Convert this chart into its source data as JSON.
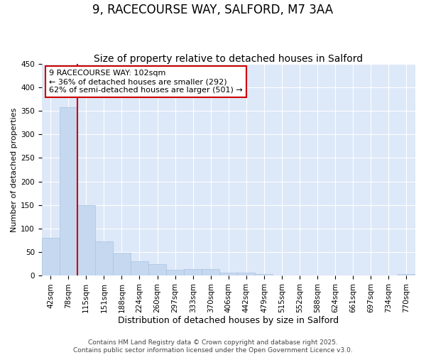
{
  "title": "9, RACECOURSE WAY, SALFORD, M7 3AA",
  "subtitle": "Size of property relative to detached houses in Salford",
  "xlabel": "Distribution of detached houses by size in Salford",
  "ylabel": "Number of detached properties",
  "bar_labels": [
    "42sqm",
    "78sqm",
    "115sqm",
    "151sqm",
    "188sqm",
    "224sqm",
    "260sqm",
    "297sqm",
    "333sqm",
    "370sqm",
    "406sqm",
    "442sqm",
    "479sqm",
    "515sqm",
    "552sqm",
    "588sqm",
    "624sqm",
    "661sqm",
    "697sqm",
    "734sqm",
    "770sqm"
  ],
  "bar_values": [
    80,
    358,
    150,
    73,
    49,
    31,
    25,
    13,
    15,
    15,
    6,
    6,
    3,
    1,
    1,
    1,
    1,
    1,
    0,
    0,
    3
  ],
  "bar_color": "#c5d8f0",
  "bar_edge_color": "#a8c4e0",
  "vline_color": "#cc0000",
  "annotation_text": "9 RACECOURSE WAY: 102sqm\n← 36% of detached houses are smaller (292)\n62% of semi-detached houses are larger (501) →",
  "annotation_box_facecolor": "#ffffff",
  "annotation_box_edgecolor": "#cc0000",
  "annotation_fontsize": 8.0,
  "ylim": [
    0,
    450
  ],
  "yticks": [
    0,
    50,
    100,
    150,
    200,
    250,
    300,
    350,
    400,
    450
  ],
  "fig_bg_color": "#ffffff",
  "plot_bg_color": "#dde8f8",
  "grid_color": "#ffffff",
  "title_fontsize": 12,
  "subtitle_fontsize": 10,
  "xlabel_fontsize": 9,
  "ylabel_fontsize": 8,
  "tick_fontsize": 7.5,
  "footer_line1": "Contains HM Land Registry data © Crown copyright and database right 2025.",
  "footer_line2": "Contains public sector information licensed under the Open Government Licence v3.0.",
  "footer_fontsize": 6.5
}
